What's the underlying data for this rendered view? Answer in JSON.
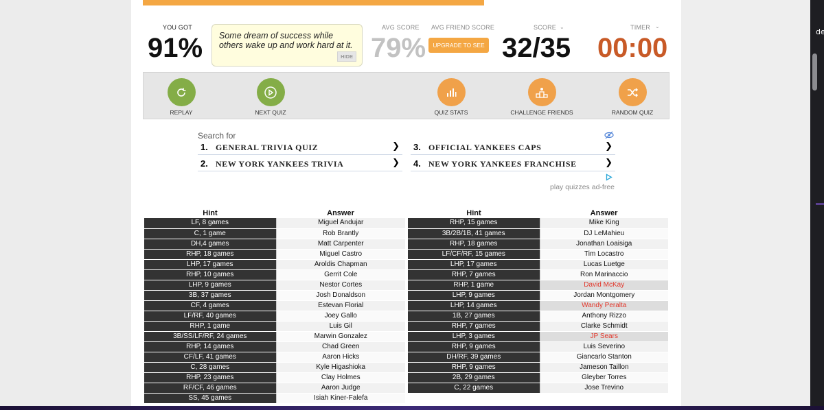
{
  "stats": {
    "you_got_label": "YOU GOT",
    "you_got_value": "91%",
    "quote": "Some dream of success while others wake up and work hard at it.",
    "hide_label": "HIDE",
    "avg_score_label": "AVG SCORE",
    "avg_score_value": "79%",
    "avg_friend_label": "AVG FRIEND SCORE",
    "upgrade_label": "UPGRADE TO SEE",
    "score_label": "SCORE",
    "score_value": "32/35",
    "timer_label": "TIMER",
    "timer_value": "00:00",
    "progress": 1.0
  },
  "actions": [
    {
      "label": "REPLAY",
      "icon": "replay-icon",
      "color": "green"
    },
    {
      "label": "NEXT QUIZ",
      "icon": "play-icon",
      "color": "green"
    },
    {
      "label": "QUIZ STATS",
      "icon": "bar-chart-icon",
      "color": "orange"
    },
    {
      "label": "CHALLENGE FRIENDS",
      "icon": "podium-icon",
      "color": "orange"
    },
    {
      "label": "RANDOM QUIZ",
      "icon": "shuffle-icon",
      "color": "orange"
    }
  ],
  "ad": {
    "search_for": "Search for",
    "items": [
      {
        "num": "1.",
        "text": "GENERAL TRIVIA QUIZ"
      },
      {
        "num": "2.",
        "text": "NEW YORK YANKEES TRIVIA"
      },
      {
        "num": "3.",
        "text": "OFFICIAL YANKEES CAPS"
      },
      {
        "num": "4.",
        "text": "NEW YORK YANKEES FRANCHISE"
      }
    ],
    "ad_free_label": "play quizzes ad-free"
  },
  "tables": {
    "hint_header": "Hint",
    "answer_header": "Answer",
    "left": [
      {
        "hint": "LF, 8 games",
        "answer": "Miguel Andujar"
      },
      {
        "hint": "C, 1 game",
        "answer": "Rob Brantly"
      },
      {
        "hint": "DH,4 games",
        "answer": "Matt Carpenter"
      },
      {
        "hint": "RHP, 18 games",
        "answer": "Miguel Castro"
      },
      {
        "hint": "LHP, 17 games",
        "answer": "Aroldis Chapman"
      },
      {
        "hint": "RHP, 10 games",
        "answer": "Gerrit Cole"
      },
      {
        "hint": "LHP, 9 games",
        "answer": "Nestor Cortes"
      },
      {
        "hint": "3B, 37 games",
        "answer": "Josh Donaldson"
      },
      {
        "hint": "CF, 4 games",
        "answer": "Estevan Florial"
      },
      {
        "hint": "LF/RF, 40 games",
        "answer": "Joey Gallo"
      },
      {
        "hint": "RHP, 1 game",
        "answer": "Luis Gil"
      },
      {
        "hint": "3B/SS/LF/RF, 24 games",
        "answer": "Marwin Gonzalez"
      },
      {
        "hint": "RHP, 14 games",
        "answer": "Chad Green"
      },
      {
        "hint": "CF/LF, 41 games",
        "answer": "Aaron Hicks"
      },
      {
        "hint": "C, 28 games",
        "answer": "Kyle Higashioka"
      },
      {
        "hint": "RHP, 23 games",
        "answer": "Clay Holmes"
      },
      {
        "hint": "RF/CF, 46 games",
        "answer": "Aaron Judge"
      },
      {
        "hint": "SS, 45 games",
        "answer": "Isiah Kiner-Falefa"
      }
    ],
    "right": [
      {
        "hint": "RHP, 15 games",
        "answer": "Mike King",
        "missed": false
      },
      {
        "hint": "3B/2B/1B, 41 games",
        "answer": "DJ LeMahieu",
        "missed": false
      },
      {
        "hint": "RHP, 18 games",
        "answer": "Jonathan Loaisiga",
        "missed": false
      },
      {
        "hint": "LF/CF/RF, 15 games",
        "answer": "Tim Locastro",
        "missed": false
      },
      {
        "hint": "LHP, 17 games",
        "answer": "Lucas Luetge",
        "missed": false
      },
      {
        "hint": "RHP, 7 games",
        "answer": "Ron Marinaccio",
        "missed": false
      },
      {
        "hint": "RHP, 1 game",
        "answer": "David McKay",
        "missed": true
      },
      {
        "hint": "LHP, 9 games",
        "answer": "Jordan Montgomery",
        "missed": false
      },
      {
        "hint": "LHP, 14 games",
        "answer": "Wandy Peralta",
        "missed": true
      },
      {
        "hint": "1B, 27 games",
        "answer": "Anthony Rizzo",
        "missed": false
      },
      {
        "hint": "RHP, 7 games",
        "answer": "Clarke Schmidt",
        "missed": false
      },
      {
        "hint": "LHP, 3 games",
        "answer": "JP Sears",
        "missed": true
      },
      {
        "hint": "RHP, 9 games",
        "answer": "Luis Severino",
        "missed": false
      },
      {
        "hint": "DH/RF, 39 games",
        "answer": "Giancarlo Stanton",
        "missed": false
      },
      {
        "hint": "RHP, 9 games",
        "answer": "Jameson Taillon",
        "missed": false
      },
      {
        "hint": "2B, 29 games",
        "answer": "Gleyber Torres",
        "missed": false
      },
      {
        "hint": "C, 22 games",
        "answer": "Jose Trevino",
        "missed": false
      }
    ]
  }
}
